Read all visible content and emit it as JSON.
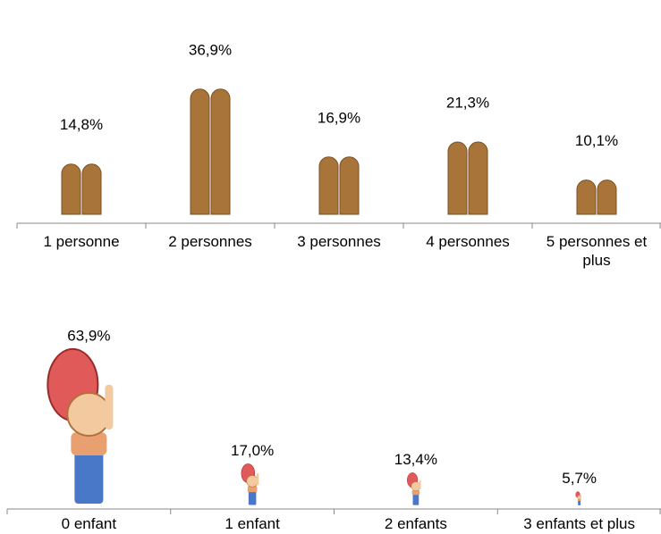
{
  "chart_data": [
    {
      "type": "bar",
      "categories": [
        "1 personne",
        "2 personnes",
        "3 personnes",
        "4 personnes",
        "5 personnes et plus"
      ],
      "values": [
        14.8,
        36.9,
        16.9,
        21.3,
        10.1
      ],
      "value_labels": [
        "14,8%",
        "36,9%",
        "16,9%",
        "21,3%",
        "10,1%"
      ],
      "color": "#a8743a"
    },
    {
      "type": "bar",
      "categories": [
        "0 enfant",
        "1 enfant",
        "2 enfants",
        "3 enfants et plus"
      ],
      "values": [
        63.9,
        17.0,
        13.4,
        5.7
      ],
      "value_labels": [
        "63,9%",
        "17,0%",
        "13,4%",
        "5,7%"
      ],
      "color": "#4a78c8"
    }
  ]
}
